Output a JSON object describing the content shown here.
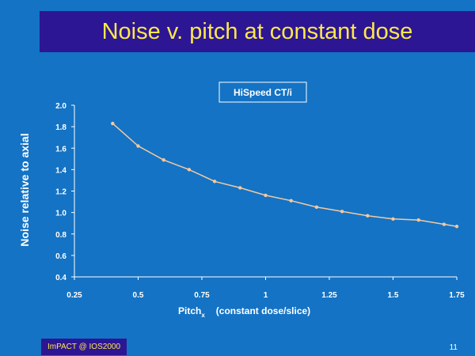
{
  "slide": {
    "title": "Noise v. pitch at constant dose",
    "footer": "ImPACT @ IOS2000",
    "page_number": "11"
  },
  "colors": {
    "background": "#1473c4",
    "title_bar": "#2c1694",
    "title_text": "#ffe84a",
    "series": "#f5c9a0"
  },
  "chart_data": {
    "type": "line",
    "title": "HiSpeed CT/i",
    "xlabel_main": "Pitch",
    "xlabel_sub": "x",
    "xlabel_rest": "(constant dose/slice)",
    "ylabel": "Noise relative to axial",
    "xlim": [
      0.25,
      1.75
    ],
    "ylim": [
      0.4,
      2.0
    ],
    "x_ticks": [
      "0.25",
      "0.5",
      "0.75",
      "1",
      "1.25",
      "1.5",
      "1.75"
    ],
    "y_ticks": [
      "0.4",
      "0.6",
      "0.8",
      "1.0",
      "1.2",
      "1.4",
      "1.6",
      "1.8",
      "2.0"
    ],
    "grid": false,
    "series": [
      {
        "x": [
          0.4,
          0.5,
          0.6,
          0.7,
          0.8,
          0.9,
          1.0,
          1.1,
          1.2,
          1.3,
          1.4,
          1.5,
          1.6,
          1.7,
          1.75
        ],
        "y": [
          1.83,
          1.62,
          1.49,
          1.4,
          1.29,
          1.23,
          1.16,
          1.11,
          1.05,
          1.01,
          0.97,
          0.94,
          0.93,
          0.89,
          0.87
        ]
      }
    ]
  }
}
